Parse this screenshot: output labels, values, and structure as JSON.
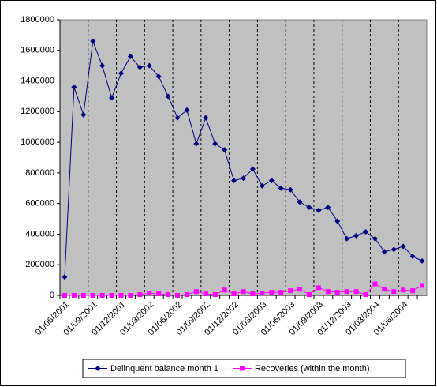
{
  "chart_data": {
    "type": "line",
    "categories": [
      "01/06/2001",
      null,
      null,
      "01/09/2001",
      null,
      null,
      "01/12/2001",
      null,
      null,
      "01/03/2002",
      null,
      null,
      "01/06/2002",
      null,
      null,
      "01/09/2002",
      null,
      null,
      "01/12/2002",
      null,
      null,
      "01/03/2003",
      null,
      null,
      "01/06/2003",
      null,
      null,
      "01/09/2003",
      null,
      null,
      "01/12/2003",
      null,
      null,
      "01/03/2004",
      null,
      null,
      "01/06/2004",
      null,
      null
    ],
    "series": [
      {
        "name": "Delinquent balance month 1",
        "color": "#000080",
        "marker": "diamond",
        "values": [
          120000,
          1360000,
          1180000,
          1660000,
          1500000,
          1290000,
          1450000,
          1560000,
          1490000,
          1500000,
          1430000,
          1300000,
          1160000,
          1210000,
          990000,
          1160000,
          990000,
          950000,
          750000,
          765000,
          825000,
          715000,
          750000,
          700000,
          690000,
          610000,
          575000,
          555000,
          575000,
          485000,
          370000,
          390000,
          415000,
          370000,
          285000,
          300000,
          320000,
          255000,
          225000
        ]
      },
      {
        "name": "Recoveries (within the month)",
        "color": "#ff00ff",
        "marker": "square",
        "values": [
          0,
          0,
          0,
          0,
          0,
          0,
          0,
          0,
          5000,
          15000,
          10000,
          5000,
          0,
          5000,
          25000,
          10000,
          5000,
          35000,
          10000,
          25000,
          10000,
          15000,
          20000,
          20000,
          30000,
          40000,
          5000,
          50000,
          25000,
          20000,
          25000,
          25000,
          5000,
          75000,
          40000,
          25000,
          35000,
          30000,
          65000
        ]
      }
    ],
    "ylim": [
      0,
      1800000
    ],
    "yticks": [
      0,
      200000,
      400000,
      600000,
      800000,
      1000000,
      1200000,
      1400000,
      1600000,
      1800000
    ],
    "plot_background": "#c0c0c0",
    "legend": "bottom"
  }
}
